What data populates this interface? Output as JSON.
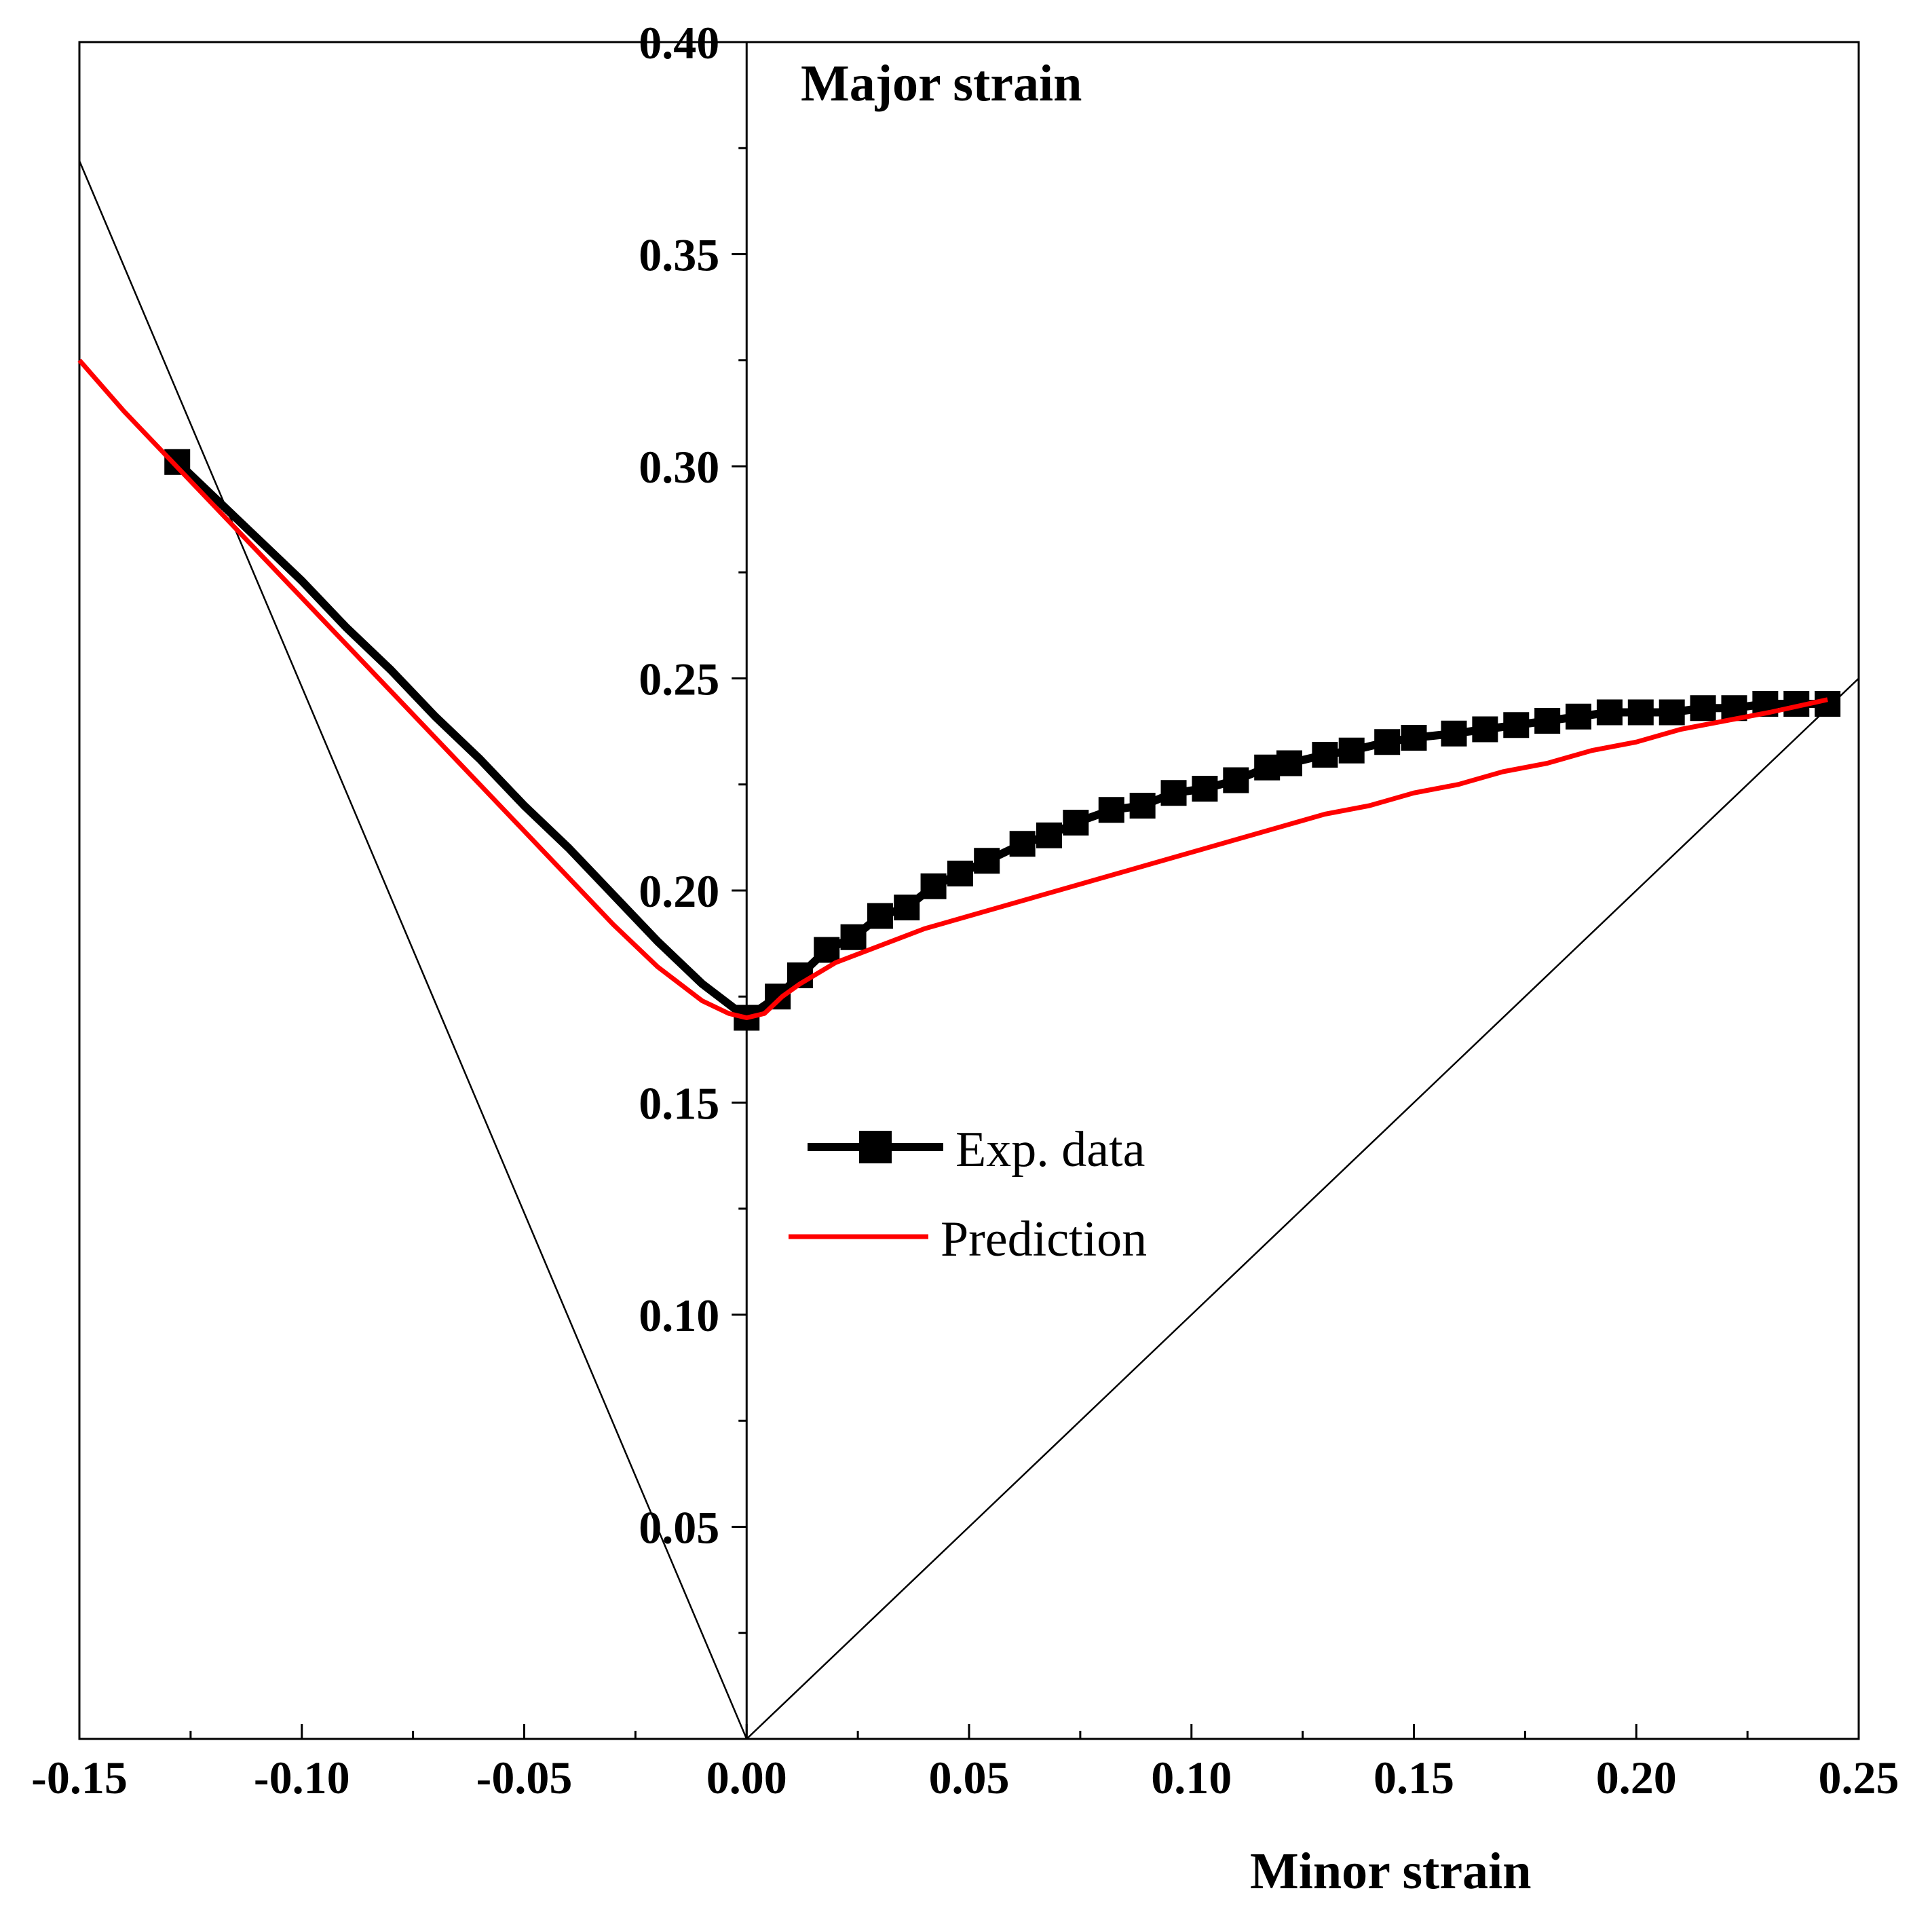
{
  "chart_data": {
    "type": "line",
    "title": "",
    "xlabel": "Minor strain",
    "ylabel": "Major strain",
    "xlim": [
      -0.15,
      0.25
    ],
    "ylim": [
      0.0,
      0.4
    ],
    "x_ticks": [
      "-0.15",
      "-0.10",
      "-0.05",
      "0.00",
      "0.05",
      "0.10",
      "0.15",
      "0.20",
      "0.25"
    ],
    "y_ticks": [
      "0.05",
      "0.10",
      "0.15",
      "0.20",
      "0.25",
      "0.30",
      "0.35",
      "0.40"
    ],
    "x_tick_values": [
      -0.15,
      -0.1,
      -0.05,
      0.0,
      0.05,
      0.1,
      0.15,
      0.2,
      0.25
    ],
    "y_tick_values": [
      0.05,
      0.1,
      0.15,
      0.2,
      0.25,
      0.3,
      0.35,
      0.4
    ],
    "grid": false,
    "legend_position": "middle-center",
    "series": [
      {
        "name": "Exp. data",
        "color": "#000000",
        "marker": "square",
        "x": [
          -0.128,
          -0.122,
          -0.11,
          -0.1,
          -0.09,
          -0.08,
          -0.07,
          -0.06,
          -0.05,
          -0.04,
          -0.03,
          -0.02,
          -0.01,
          0.0,
          0.007,
          0.012,
          0.018,
          0.024,
          0.03,
          0.036,
          0.042,
          0.048,
          0.054,
          0.062,
          0.068,
          0.074,
          0.082,
          0.089,
          0.096,
          0.103,
          0.11,
          0.117,
          0.122,
          0.13,
          0.136,
          0.144,
          0.15,
          0.159,
          0.166,
          0.173,
          0.18,
          0.187,
          0.194,
          0.201,
          0.208,
          0.215,
          0.222,
          0.229,
          0.236,
          0.243
        ],
        "y": [
          0.301,
          0.295,
          0.283,
          0.273,
          0.262,
          0.252,
          0.241,
          0.231,
          0.22,
          0.21,
          0.199,
          0.188,
          0.178,
          0.17,
          0.175,
          0.18,
          0.186,
          0.189,
          0.194,
          0.196,
          0.201,
          0.204,
          0.207,
          0.211,
          0.213,
          0.216,
          0.219,
          0.22,
          0.223,
          0.224,
          0.226,
          0.229,
          0.23,
          0.232,
          0.233,
          0.235,
          0.236,
          0.237,
          0.238,
          0.239,
          0.24,
          0.241,
          0.242,
          0.242,
          0.242,
          0.243,
          0.243,
          0.244,
          0.244,
          0.244
        ]
      },
      {
        "name": "Prediction",
        "color": "#ff0000",
        "marker": "none",
        "x": [
          -0.15,
          -0.14,
          -0.13,
          -0.12,
          -0.11,
          -0.1,
          -0.09,
          -0.08,
          -0.07,
          -0.06,
          -0.05,
          -0.04,
          -0.03,
          -0.02,
          -0.01,
          -0.004,
          0.0,
          0.004,
          0.008,
          0.012,
          0.02,
          0.03,
          0.04,
          0.05,
          0.06,
          0.07,
          0.08,
          0.09,
          0.1,
          0.11,
          0.12,
          0.13,
          0.14,
          0.15,
          0.16,
          0.17,
          0.18,
          0.19,
          0.2,
          0.21,
          0.22,
          0.23,
          0.243
        ],
        "y": [
          0.325,
          0.313,
          0.302,
          0.291,
          0.28,
          0.269,
          0.258,
          0.247,
          0.236,
          0.225,
          0.214,
          0.203,
          0.192,
          0.182,
          0.174,
          0.171,
          0.17,
          0.171,
          0.175,
          0.178,
          0.183,
          0.187,
          0.191,
          0.194,
          0.197,
          0.2,
          0.203,
          0.206,
          0.209,
          0.212,
          0.215,
          0.218,
          0.22,
          0.223,
          0.225,
          0.228,
          0.23,
          0.233,
          0.235,
          0.238,
          0.24,
          0.242,
          0.245
        ]
      }
    ],
    "reference_lines": [
      {
        "name": "uniaxial-reference",
        "x": [
          -0.15,
          0.0
        ],
        "y": [
          0.372,
          0.0
        ]
      },
      {
        "name": "equibiaxial-reference",
        "x": [
          0.0,
          0.25
        ],
        "y": [
          0.0,
          0.25
        ]
      }
    ]
  }
}
